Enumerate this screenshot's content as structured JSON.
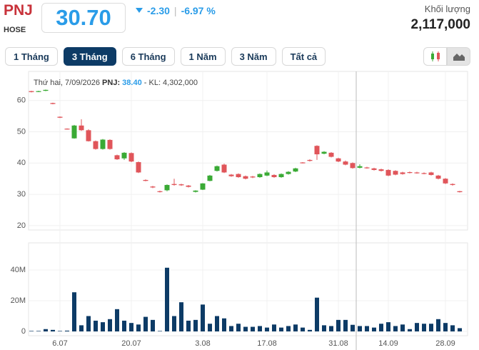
{
  "header": {
    "symbol": "PNJ",
    "exchange": "HOSE",
    "price": "30.70",
    "change": "-2.30",
    "change_pct": "-6.97 %",
    "volume_label": "Khối lượng",
    "volume": "2,117,000"
  },
  "ranges": [
    {
      "label": "1 Tháng",
      "active": false
    },
    {
      "label": "3 Tháng",
      "active": true
    },
    {
      "label": "6 Tháng",
      "active": false
    },
    {
      "label": "1 Năm",
      "active": false
    },
    {
      "label": "3 Năm",
      "active": false
    },
    {
      "label": "Tất cả",
      "active": false
    }
  ],
  "chart_data": [
    {
      "type": "candlestick",
      "up_color": "#3aaa35",
      "down_color": "#e0555a",
      "ylim": [
        18.6,
        69.3
      ],
      "yticks": [
        20,
        30,
        40,
        50,
        60
      ],
      "grid": true,
      "tooltip": {
        "date": "Thứ hai, 7/09/2026",
        "symbol": "PNJ:",
        "price": "38.40",
        "volume": "- KL: 4,302,000"
      },
      "open": [
        63.0,
        62.8,
        63.1,
        59.2,
        54.8,
        51.0,
        47.9,
        52.0,
        50.5,
        47.0,
        44.5,
        47.4,
        42.5,
        41.5,
        43.2,
        40.3,
        34.6,
        32.5,
        31.0,
        31.3,
        33.3,
        33.2,
        32.8,
        30.8,
        31.5,
        34.3,
        37.5,
        39.5,
        36.3,
        36.5,
        35.8,
        35.7,
        35.5,
        36.0,
        36.2,
        35.5,
        36.5,
        37.3,
        40.2,
        41.0,
        45.5,
        43.0,
        43.3,
        41.5,
        40.5,
        40.0,
        38.5,
        38.6,
        38.3,
        38.0,
        37.8,
        37.5,
        37.0,
        37.1,
        37.0,
        36.8,
        37.0,
        36.0,
        35.0,
        33.3,
        31.0
      ],
      "high": [
        63.1,
        63.1,
        63.5,
        59.3,
        54.9,
        51.1,
        52.2,
        54.0,
        50.8,
        47.2,
        47.7,
        47.6,
        42.7,
        43.5,
        43.4,
        40.5,
        34.8,
        32.7,
        31.2,
        33.2,
        35.0,
        33.4,
        33.0,
        31.3,
        33.6,
        36.2,
        39.2,
        39.8,
        36.5,
        36.7,
        36.0,
        35.9,
        36.7,
        37.6,
        36.4,
        36.7,
        37.4,
        38.5,
        40.3,
        41.2,
        45.7,
        43.8,
        43.5,
        41.7,
        40.8,
        40.2,
        39.6,
        38.8,
        38.5,
        38.2,
        38.0,
        37.7,
        37.2,
        37.3,
        37.2,
        37.0,
        37.2,
        36.2,
        35.2,
        33.5,
        31.1
      ],
      "low": [
        62.6,
        62.7,
        63.0,
        58.8,
        54.4,
        50.7,
        47.8,
        50.3,
        46.9,
        44.3,
        44.3,
        44.3,
        41.0,
        41.0,
        40.3,
        36.8,
        34.2,
        32.0,
        30.6,
        31.0,
        32.8,
        32.7,
        32.2,
        30.6,
        31.4,
        34.2,
        37.3,
        36.8,
        35.6,
        35.3,
        34.8,
        35.2,
        35.3,
        35.8,
        35.3,
        35.3,
        36.3,
        37.1,
        39.9,
        40.5,
        41.0,
        42.8,
        41.8,
        40.3,
        39.3,
        38.2,
        38.3,
        38.2,
        37.6,
        37.3,
        35.8,
        36.1,
        36.3,
        36.7,
        36.6,
        36.4,
        36.0,
        34.8,
        33.3,
        32.8,
        30.6
      ],
      "close": [
        62.7,
        63.0,
        63.4,
        58.9,
        54.5,
        50.8,
        52.0,
        50.5,
        47.0,
        44.5,
        47.5,
        44.5,
        41.2,
        43.3,
        40.5,
        37.0,
        34.3,
        32.2,
        30.8,
        33.0,
        33.0,
        32.9,
        32.4,
        31.2,
        33.5,
        36.0,
        39.0,
        37.0,
        35.8,
        35.5,
        35.0,
        35.4,
        36.5,
        37.0,
        35.5,
        36.5,
        37.2,
        38.3,
        40.0,
        40.7,
        42.8,
        43.6,
        42.0,
        40.5,
        39.5,
        38.4,
        39.0,
        38.4,
        37.8,
        37.5,
        36.0,
        36.3,
        36.5,
        36.9,
        36.8,
        36.6,
        36.2,
        35.0,
        33.5,
        33.0,
        30.7
      ]
    },
    {
      "type": "bar",
      "color": "#0d3b66",
      "ylim": [
        -2800000,
        57700000
      ],
      "yticks": [
        0,
        {
          "value": 20000000,
          "label": "20M"
        },
        {
          "value": 40000000,
          "label": "40M"
        }
      ],
      "categories": [
        null,
        null,
        null,
        null,
        "6.07",
        null,
        null,
        null,
        null,
        null,
        null,
        null,
        null,
        null,
        "20.07",
        null,
        null,
        null,
        null,
        null,
        null,
        null,
        null,
        null,
        "3.08",
        null,
        null,
        null,
        null,
        null,
        null,
        null,
        null,
        "17.08",
        null,
        null,
        null,
        null,
        null,
        null,
        null,
        null,
        null,
        "31.08",
        null,
        null,
        null,
        null,
        null,
        null,
        "14.09",
        null,
        null,
        null,
        null,
        null,
        null,
        null,
        "28.09",
        null,
        null
      ],
      "values": [
        300000,
        300000,
        1500000,
        1000000,
        300000,
        500000,
        25500000,
        4000000,
        10000000,
        7000000,
        6000000,
        8000000,
        14500000,
        7000000,
        5500000,
        4500000,
        9500000,
        7500000,
        300000,
        41500000,
        10000000,
        19000000,
        7000000,
        7500000,
        17500000,
        5000000,
        10000000,
        8500000,
        3500000,
        5000000,
        3000000,
        3000000,
        3500000,
        2500000,
        4500000,
        2500000,
        3500000,
        4500000,
        2500000,
        1000000,
        22000000,
        4000000,
        3500000,
        7500000,
        7500000,
        4302000,
        3500000,
        3500000,
        2500000,
        5000000,
        6000000,
        3500000,
        4500000,
        1500000,
        5500000,
        5000000,
        5000000,
        8000000,
        5500000,
        4000000,
        2117000
      ]
    }
  ]
}
